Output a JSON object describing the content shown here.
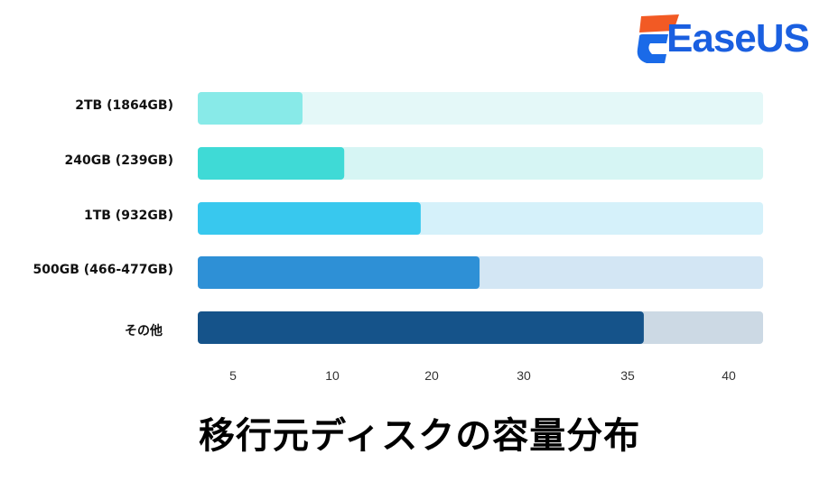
{
  "logo": {
    "text": "EaseUS"
  },
  "chart_data": {
    "type": "bar",
    "orientation": "horizontal",
    "title": "移行元ディスクの容量分布",
    "categories": [
      "2TB (1864GB)",
      "240GB (239GB)",
      "1TB (932GB)",
      "500GB (466-477GB)",
      "その他"
    ],
    "values": [
      8.5,
      11.2,
      18.9,
      25.2,
      35.8
    ],
    "x_tick_labels": [
      "5",
      "10",
      "20",
      "30",
      "35",
      "40"
    ],
    "grid": false,
    "legend": "none",
    "colors": [
      "#88eae8",
      "#3fdad6",
      "#38c8ee",
      "#2e90d6",
      "#15538a"
    ],
    "track_colors": [
      "#e4f8f8",
      "#d6f5f4",
      "#d5f1fa",
      "#d3e6f4",
      "#ccd9e4"
    ]
  }
}
